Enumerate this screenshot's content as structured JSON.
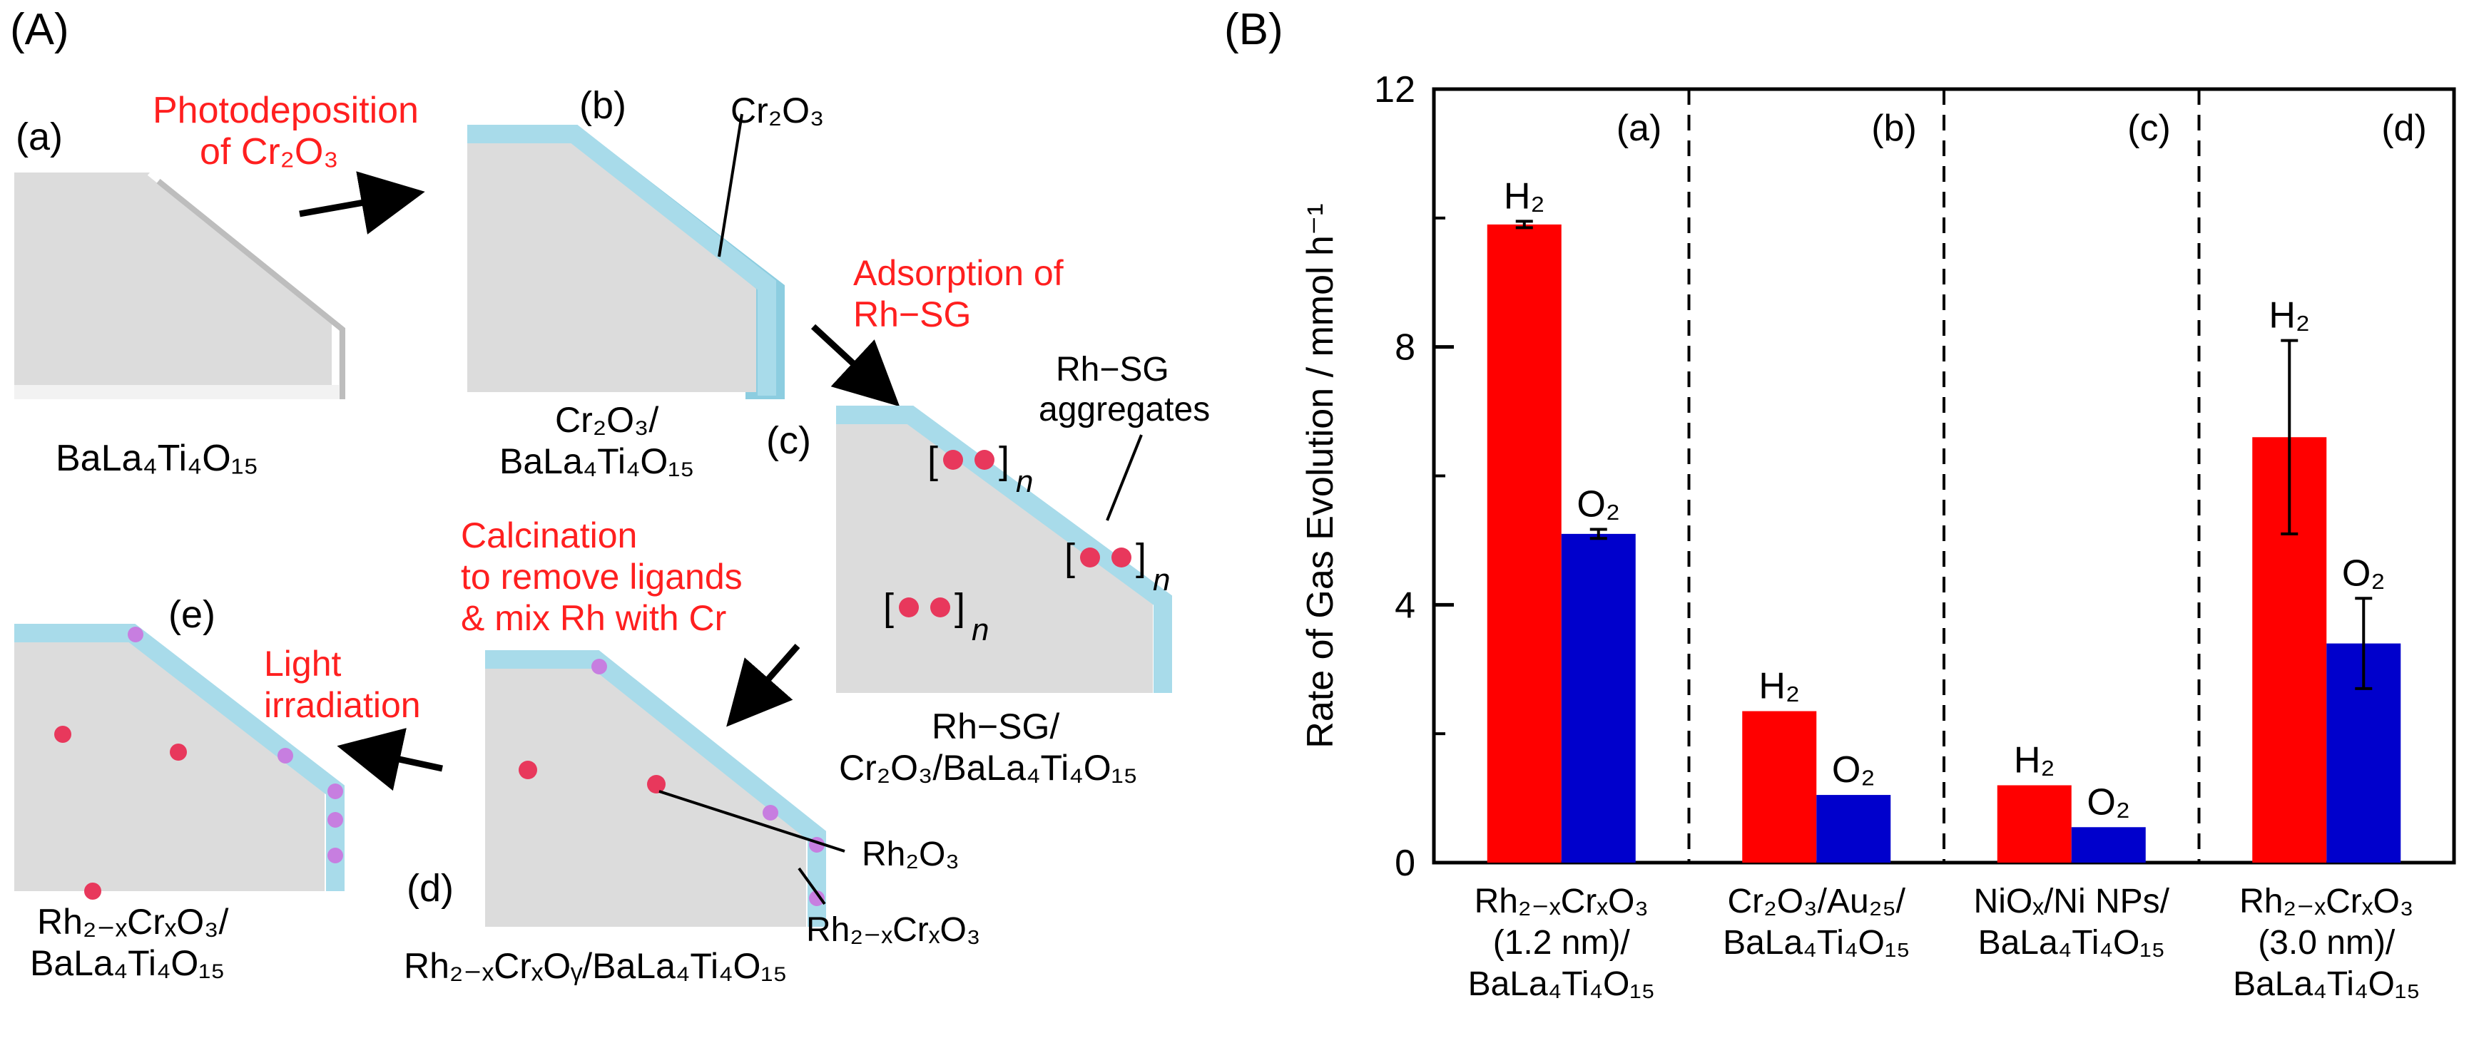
{
  "panelA": {
    "label": "(A)",
    "stages": {
      "a": {
        "tag": "(a)",
        "label": "BaLa₄Ti₄O₁₅"
      },
      "b": {
        "tag": "(b)",
        "label_line1": "Cr₂O₃/",
        "label_line2": "BaLa₄Ti₄O₁₅",
        "callout": "Cr₂O₃"
      },
      "c": {
        "tag": "(c)",
        "label_line1": "Rh−SG/",
        "label_line2": "Cr₂O₃/BaLa₄Ti₄O₁₅",
        "callout_line1": "Rh−SG",
        "callout_line2": "aggregates",
        "n": "n"
      },
      "d": {
        "tag": "(d)",
        "label": "Rh₂₋ₓCrₓOᵧ/BaLa₄Ti₄O₁₅",
        "callout_rh2o3": "Rh₂O₃",
        "callout_rhcr": "Rh₂₋ₓCrₓO₃"
      },
      "e": {
        "tag": "(e)",
        "label_line1": "Rh₂₋ₓCrₓO₃/",
        "label_line2": "BaLa₄Ti₄O₁₅"
      }
    },
    "steps": {
      "photodeposition_line1": "Photodeposition",
      "photodeposition_line2": "of Cr₂O₃",
      "adsorption_line1": "Adsorption of",
      "adsorption_line2": "Rh−SG",
      "calcination_line1": "Calcination",
      "calcination_line2": "to remove ligands",
      "calcination_line3": "& mix Rh with Cr",
      "light_line1": "Light",
      "light_line2": "irradiation"
    },
    "colors": {
      "step_text": "#ff1f1f",
      "crystal_face": "#dcdcdc",
      "shell": "#a8dbea",
      "rh_particle": "#e8385c",
      "rhcr_particle": "#c77ee0"
    }
  },
  "chart_data": {
    "panel_label": "(B)",
    "type": "bar",
    "ylabel": "Rate of Gas Evolution / mmol h⁻¹",
    "ylim": [
      0,
      12
    ],
    "yticks": [
      0,
      4,
      8,
      12
    ],
    "minor_ticks": [
      2,
      6,
      10
    ],
    "groups": [
      {
        "tag": "(a)",
        "category_line1": "Rh₂₋ₓCrₓO₃",
        "category_line2": "(1.2 nm)/",
        "category_line3": "BaLa₄Ti₄O₁₅"
      },
      {
        "tag": "(b)",
        "category_line1": "Cr₂O₃/Au₂₅/",
        "category_line2": "BaLa₄Ti₄O₁₅",
        "category_line3": ""
      },
      {
        "tag": "(c)",
        "category_line1": "NiOₓ/Ni NPs/",
        "category_line2": "BaLa₄Ti₄O₁₅",
        "category_line3": ""
      },
      {
        "tag": "(d)",
        "category_line1": "Rh₂₋ₓCrₓO₃",
        "category_line2": "(3.0 nm)/",
        "category_line3": "BaLa₄Ti₄O₁₅"
      }
    ],
    "series": [
      {
        "name": "H₂",
        "label": "H₂",
        "color": "#ff0000",
        "values": [
          9.9,
          2.35,
          1.2,
          6.6
        ],
        "errors": [
          0.05,
          0,
          0,
          1.5
        ]
      },
      {
        "name": "O₂",
        "label": "O₂",
        "color": "#0000cc",
        "values": [
          5.1,
          1.05,
          0.55,
          3.4
        ],
        "errors": [
          0.07,
          0,
          0,
          0.7
        ]
      }
    ]
  }
}
